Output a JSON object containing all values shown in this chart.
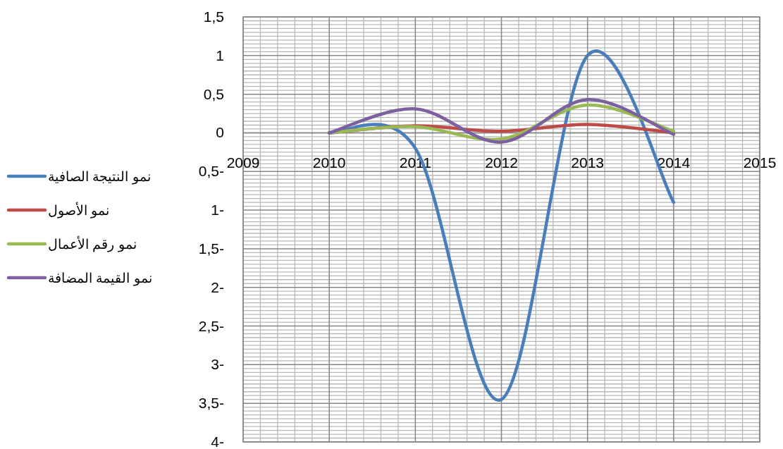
{
  "chart_data": {
    "type": "line",
    "x": [
      2010,
      2011,
      2012,
      2013,
      2014
    ],
    "series": [
      {
        "name": "نمو النتيجة الصافية",
        "color": "#4a7ebb",
        "values": [
          0,
          -0.2,
          -3.45,
          1.0,
          -0.9
        ]
      },
      {
        "name": "نمو الأصول",
        "color": "#be4b48",
        "values": [
          0,
          0.09,
          0.02,
          0.11,
          0
        ]
      },
      {
        "name": "نمو رقم الأعمال",
        "color": "#98b954",
        "values": [
          0,
          0.08,
          -0.08,
          0.36,
          0.02
        ]
      },
      {
        "name": "نمو القيمة المضافة",
        "color": "#7d60a0",
        "values": [
          0,
          0.31,
          -0.12,
          0.43,
          -0.02
        ]
      }
    ],
    "xlim": [
      2009,
      2015
    ],
    "xticks": [
      2009,
      2010,
      2011,
      2012,
      2013,
      2014,
      2015
    ],
    "ylim": [
      -4,
      1.5
    ],
    "yticks": [
      {
        "value": 1.5,
        "label": "1,5"
      },
      1,
      {
        "value": 0.5,
        "label": "0,5"
      },
      0,
      {
        "value": -0.5,
        "label": "0,5-"
      },
      {
        "value": -1,
        "label": "1-"
      },
      {
        "value": -1.5,
        "label": "1,5-"
      },
      {
        "value": -2,
        "label": "2-"
      },
      {
        "value": -2.5,
        "label": "2,5-"
      },
      {
        "value": -3,
        "label": "3-"
      },
      {
        "value": -3.5,
        "label": "3,5-"
      },
      {
        "value": -4,
        "label": "4-"
      }
    ],
    "grid": true,
    "legend": "left",
    "marker": "none",
    "line_style": "solid"
  }
}
